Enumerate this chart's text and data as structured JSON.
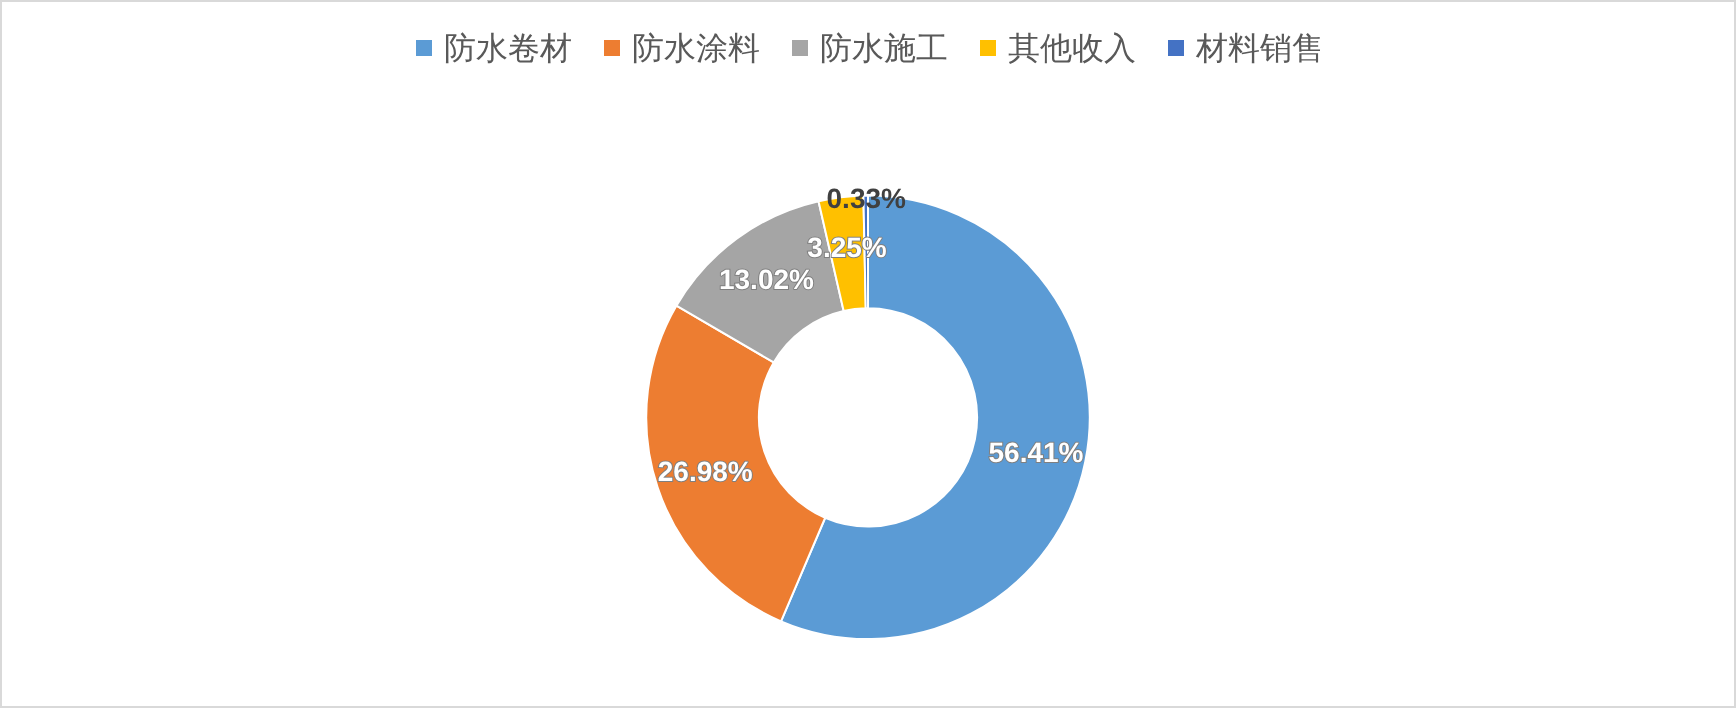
{
  "chart_data": {
    "type": "donut",
    "categories": [
      "防水卷材",
      "防水涂料",
      "防水施工",
      "其他收入",
      "材料销售"
    ],
    "values": [
      56.41,
      26.98,
      13.02,
      3.25,
      0.33
    ],
    "colors": [
      "#5b9bd5",
      "#ed7d31",
      "#a5a5a5",
      "#ffc000",
      "#4472c4"
    ],
    "value_labels": [
      "56.41%",
      "26.98%",
      "13.02%",
      "3.25%",
      "0.33%"
    ],
    "legend": "top"
  }
}
